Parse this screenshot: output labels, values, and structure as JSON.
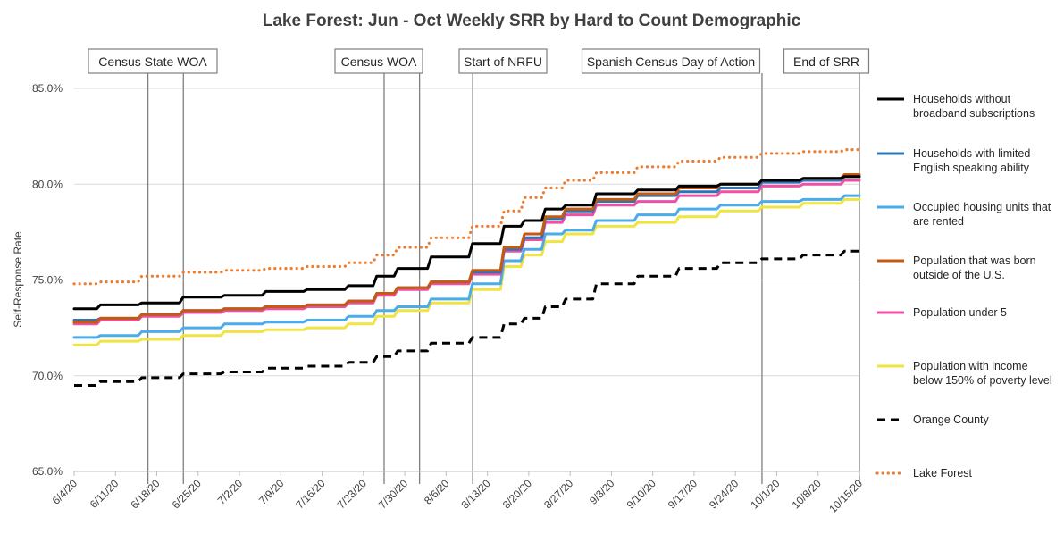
{
  "chart_data": {
    "type": "line",
    "title": "Lake Forest: Jun - Oct Weekly SRR by Hard to Count Demographic",
    "xlabel": "",
    "ylabel": "Self-Response Rate",
    "ylim": [
      65,
      85
    ],
    "yticks": [
      65,
      70,
      75,
      80,
      85
    ],
    "ytick_labels": [
      "65.0%",
      "70.0%",
      "75.0%",
      "80.0%",
      "85.0%"
    ],
    "x_range": [
      0,
      133
    ],
    "x_ticks": [
      {
        "label": "6/4/20",
        "day": 0
      },
      {
        "label": "6/11/20",
        "day": 7
      },
      {
        "label": "6/18/20",
        "day": 14
      },
      {
        "label": "6/25/20",
        "day": 21
      },
      {
        "label": "7/2/20",
        "day": 28
      },
      {
        "label": "7/9/20",
        "day": 35
      },
      {
        "label": "7/16/20",
        "day": 42
      },
      {
        "label": "7/23/20",
        "day": 49
      },
      {
        "label": "7/30/20",
        "day": 56
      },
      {
        "label": "8/6/20",
        "day": 63
      },
      {
        "label": "8/13/20",
        "day": 70
      },
      {
        "label": "8/20/20",
        "day": 77
      },
      {
        "label": "8/27/20",
        "day": 84
      },
      {
        "label": "9/3/20",
        "day": 91
      },
      {
        "label": "9/10/20",
        "day": 98
      },
      {
        "label": "9/17/20",
        "day": 105
      },
      {
        "label": "9/24/20",
        "day": 112
      },
      {
        "label": "10/1/20",
        "day": 119
      },
      {
        "label": "10/8/20",
        "day": 126
      },
      {
        "label": "10/15/20",
        "day": 133
      }
    ],
    "events": [
      {
        "label": "Census State WOA",
        "lines": [
          12.5,
          18.5
        ]
      },
      {
        "label": "Census WOA",
        "lines": [
          52.5,
          58.5
        ]
      },
      {
        "label": "Start of NRFU",
        "lines": [
          67.5
        ]
      },
      {
        "label": "Spanish Census Day of Action",
        "lines": [
          116.5
        ]
      },
      {
        "label": "End of SRR",
        "lines": [
          133
        ]
      }
    ],
    "x": [
      0,
      7,
      14,
      21,
      28,
      35,
      42,
      49,
      52,
      56,
      63,
      70,
      74,
      77,
      81,
      84,
      91,
      98,
      105,
      112,
      119,
      126,
      133
    ],
    "series": [
      {
        "name": "Households without broadband subscriptions",
        "color": "#000000",
        "style": "solid",
        "values": [
          73.5,
          73.7,
          73.8,
          74.1,
          74.2,
          74.4,
          74.5,
          74.7,
          75.2,
          75.6,
          76.2,
          76.9,
          77.8,
          78.1,
          78.7,
          78.9,
          79.5,
          79.7,
          79.9,
          80.0,
          80.2,
          80.3,
          80.4
        ]
      },
      {
        "name": "Households with limited-English speaking ability",
        "color": "#2e75b6",
        "style": "solid",
        "values": [
          72.9,
          73.0,
          73.2,
          73.4,
          73.5,
          73.6,
          73.7,
          73.9,
          74.3,
          74.6,
          74.9,
          75.4,
          76.6,
          77.2,
          78.2,
          78.6,
          79.1,
          79.4,
          79.6,
          79.8,
          80.1,
          80.2,
          80.4
        ]
      },
      {
        "name": "Occupied housing units that are rented",
        "color": "#4aace8",
        "style": "solid",
        "values": [
          72.0,
          72.1,
          72.3,
          72.5,
          72.7,
          72.8,
          72.9,
          73.1,
          73.4,
          73.6,
          74.0,
          74.8,
          76.0,
          76.6,
          77.4,
          77.6,
          78.1,
          78.4,
          78.7,
          78.9,
          79.1,
          79.2,
          79.4
        ]
      },
      {
        "name": "Population that was born outside of the U.S.",
        "color": "#c55a11",
        "style": "solid",
        "values": [
          72.8,
          73.0,
          73.2,
          73.4,
          73.5,
          73.6,
          73.7,
          73.9,
          74.3,
          74.6,
          74.9,
          75.5,
          76.7,
          77.4,
          78.3,
          78.7,
          79.2,
          79.5,
          79.8,
          80.0,
          80.2,
          80.3,
          80.5
        ]
      },
      {
        "name": "Population under 5",
        "color": "#ef4fa6",
        "style": "solid",
        "values": [
          72.7,
          72.9,
          73.1,
          73.3,
          73.4,
          73.5,
          73.6,
          73.8,
          74.2,
          74.5,
          74.8,
          75.3,
          76.5,
          77.1,
          78.0,
          78.4,
          78.9,
          79.1,
          79.4,
          79.6,
          79.9,
          80.0,
          80.2
        ]
      },
      {
        "name": "Population with income below 150% of poverty level",
        "color": "#f0e442",
        "style": "solid",
        "values": [
          71.6,
          71.8,
          71.9,
          72.1,
          72.3,
          72.4,
          72.5,
          72.7,
          73.1,
          73.4,
          73.8,
          74.5,
          75.7,
          76.3,
          77.0,
          77.4,
          77.8,
          78.0,
          78.3,
          78.6,
          78.8,
          79.0,
          79.2
        ]
      },
      {
        "name": "Orange County",
        "color": "#000000",
        "style": "dashed",
        "values": [
          69.5,
          69.7,
          69.9,
          70.1,
          70.2,
          70.4,
          70.5,
          70.7,
          71.0,
          71.3,
          71.7,
          72.0,
          72.7,
          73.0,
          73.6,
          74.0,
          74.8,
          75.2,
          75.6,
          75.9,
          76.1,
          76.3,
          76.5
        ]
      },
      {
        "name": "Lake Forest",
        "color": "#ed7d31",
        "style": "dotted",
        "values": [
          74.8,
          74.9,
          75.2,
          75.4,
          75.5,
          75.6,
          75.7,
          75.9,
          76.3,
          76.7,
          77.2,
          77.8,
          78.6,
          79.3,
          79.8,
          80.2,
          80.6,
          80.9,
          81.2,
          81.4,
          81.6,
          81.7,
          81.8
        ]
      }
    ],
    "legend": [
      {
        "line1": "Households without",
        "line2": "broadband subscriptions"
      },
      {
        "line1": "Households with limited-",
        "line2": "English speaking ability"
      },
      {
        "line1": "Occupied housing units that",
        "line2": "are rented"
      },
      {
        "line1": "Population that was born",
        "line2": "outside of the U.S."
      },
      {
        "line1": "Population under 5",
        "line2": ""
      },
      {
        "line1": "Population with income",
        "line2": "below 150% of poverty level"
      },
      {
        "line1": "Orange County",
        "line2": ""
      },
      {
        "line1": "Lake Forest",
        "line2": ""
      }
    ]
  }
}
